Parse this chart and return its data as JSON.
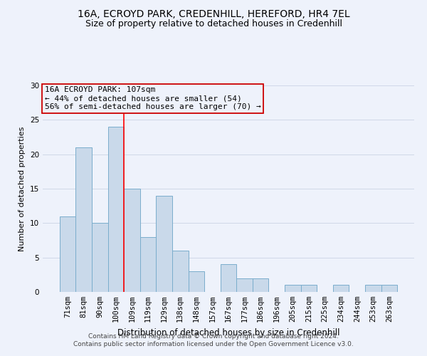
{
  "title": "16A, ECROYD PARK, CREDENHILL, HEREFORD, HR4 7EL",
  "subtitle": "Size of property relative to detached houses in Credenhill",
  "xlabel": "Distribution of detached houses by size in Credenhill",
  "ylabel": "Number of detached properties",
  "categories": [
    "71sqm",
    "81sqm",
    "90sqm",
    "100sqm",
    "109sqm",
    "119sqm",
    "129sqm",
    "138sqm",
    "148sqm",
    "157sqm",
    "167sqm",
    "177sqm",
    "186sqm",
    "196sqm",
    "205sqm",
    "215sqm",
    "225sqm",
    "234sqm",
    "244sqm",
    "253sqm",
    "263sqm"
  ],
  "values": [
    11,
    21,
    10,
    24,
    15,
    8,
    14,
    6,
    3,
    0,
    4,
    2,
    2,
    0,
    1,
    1,
    0,
    1,
    0,
    1,
    1
  ],
  "bar_color": "#c9d9ea",
  "bar_edgecolor": "#7aadcc",
  "bar_linewidth": 0.7,
  "ylim": [
    0,
    30
  ],
  "yticks": [
    0,
    5,
    10,
    15,
    20,
    25,
    30
  ],
  "grid_color": "#d0d8e8",
  "background_color": "#eef2fb",
  "annotation_line1": "16A ECROYD PARK: 107sqm",
  "annotation_line2": "← 44% of detached houses are smaller (54)",
  "annotation_line3": "56% of semi-detached houses are larger (70) →",
  "annotation_box_edgecolor": "#cc0000",
  "property_line_x": 3.5,
  "footer": "Contains HM Land Registry data © Crown copyright and database right 2024.\nContains public sector information licensed under the Open Government Licence v3.0.",
  "title_fontsize": 10,
  "subtitle_fontsize": 9,
  "xlabel_fontsize": 8.5,
  "ylabel_fontsize": 8,
  "tick_fontsize": 7.5,
  "annotation_fontsize": 8,
  "footer_fontsize": 6.5
}
